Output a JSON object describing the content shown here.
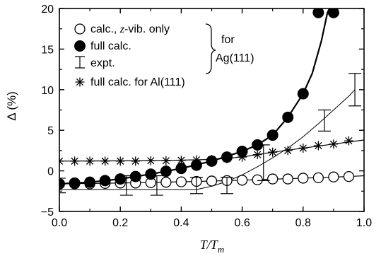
{
  "chart_data": {
    "type": "scatter",
    "xlabel": {
      "main": "T/T",
      "sub": "m"
    },
    "ylabel": "Δ (%)",
    "xlim": [
      0.0,
      1.0
    ],
    "ylim": [
      -5,
      20
    ],
    "x_ticks": [
      0.0,
      0.2,
      0.4,
      0.6,
      0.8,
      1.0
    ],
    "x_tick_labels": [
      "0.0",
      "0.2",
      "0.4",
      "0.6",
      "0.8",
      "1.0"
    ],
    "y_ticks": [
      -5,
      0,
      5,
      10,
      15,
      20
    ],
    "y_tick_labels": [
      "−5",
      "0",
      "5",
      "10",
      "15",
      "20"
    ],
    "grid": false,
    "legend": {
      "placement": "top-left",
      "entries": [
        {
          "pre": "calc., ",
          "math": "z",
          "post": "-vib. only"
        },
        {
          "pre": "full calc.",
          "math": "",
          "post": ""
        },
        {
          "pre": "expt.",
          "math": "",
          "post": ""
        },
        {
          "pre": "full calc. for Al(111)",
          "math": "",
          "post": ""
        }
      ],
      "brace_label_line1": "for",
      "brace_label_line2": "Ag(111)"
    },
    "series": [
      {
        "name": "calc., z-vib. only",
        "marker": "open-circle",
        "x": [
          0.0,
          0.05,
          0.1,
          0.15,
          0.2,
          0.25,
          0.3,
          0.35,
          0.4,
          0.45,
          0.5,
          0.55,
          0.6,
          0.65,
          0.7,
          0.75,
          0.8,
          0.85,
          0.9,
          0.95
        ],
        "y": [
          -1.6,
          -1.6,
          -1.6,
          -1.55,
          -1.5,
          -1.5,
          -1.45,
          -1.4,
          -1.35,
          -1.3,
          -1.25,
          -1.2,
          -1.15,
          -1.1,
          -1.0,
          -1.0,
          -0.9,
          -0.85,
          -0.75,
          -0.7
        ]
      },
      {
        "name": "full calc.",
        "marker": "filled-circle",
        "x": [
          0.0,
          0.05,
          0.1,
          0.15,
          0.2,
          0.25,
          0.3,
          0.35,
          0.4,
          0.45,
          0.5,
          0.55,
          0.6,
          0.65,
          0.7,
          0.75,
          0.8,
          0.85,
          0.9
        ],
        "y": [
          -1.6,
          -1.5,
          -1.4,
          -1.2,
          -1.0,
          -0.7,
          -0.4,
          -0.05,
          0.3,
          0.7,
          1.2,
          1.7,
          2.4,
          3.2,
          4.4,
          6.6,
          9.5,
          19.5,
          19.5
        ]
      },
      {
        "name": "full calc. for Al(111)",
        "marker": "asterisk",
        "x": [
          0.0,
          0.05,
          0.1,
          0.15,
          0.2,
          0.25,
          0.3,
          0.35,
          0.4,
          0.45,
          0.5,
          0.55,
          0.6,
          0.65,
          0.7,
          0.75,
          0.8,
          0.85,
          0.9,
          0.95
        ],
        "y": [
          1.2,
          1.2,
          1.2,
          1.2,
          1.2,
          1.2,
          1.25,
          1.25,
          1.3,
          1.35,
          1.4,
          1.5,
          1.7,
          2.0,
          2.3,
          2.5,
          2.8,
          3.1,
          3.3,
          3.7
        ]
      },
      {
        "name": "expt.",
        "marker": "error-bar",
        "x": [
          0.0,
          0.22,
          0.32,
          0.45,
          0.55,
          0.67,
          0.87,
          0.97
        ],
        "y": [
          -1.8,
          -1.8,
          -1.8,
          -1.8,
          -1.8,
          1.0,
          6.2,
          10.0
        ],
        "yerr": [
          0.9,
          1.2,
          1.2,
          1.0,
          1.0,
          2.2,
          1.3,
          2.0
        ]
      }
    ],
    "lines": [
      {
        "name": "expt-fit",
        "width": 1,
        "x": [
          0.0,
          0.45,
          0.5,
          0.55,
          0.6,
          0.65,
          0.7,
          0.75,
          0.8,
          0.85,
          0.9,
          0.95,
          0.97
        ],
        "y": [
          -2.3,
          -2.3,
          -1.9,
          -1.3,
          -0.5,
          0.5,
          1.6,
          2.8,
          4.2,
          5.8,
          7.5,
          9.2,
          10.0
        ]
      },
      {
        "name": "full-calc-fit",
        "width": 2.2,
        "x": [
          0.0,
          0.1,
          0.2,
          0.3,
          0.4,
          0.5,
          0.6,
          0.65,
          0.7,
          0.75,
          0.8,
          0.83,
          0.86,
          0.88,
          0.9
        ],
        "y": [
          -1.6,
          -1.4,
          -1.0,
          -0.4,
          0.3,
          1.2,
          2.4,
          3.2,
          4.4,
          6.6,
          9.5,
          12.0,
          16.0,
          19.5,
          21.0
        ]
      },
      {
        "name": "z-vib-fit",
        "width": 1.2,
        "x": [
          0.0,
          0.2,
          0.4,
          0.6,
          0.8,
          0.95,
          1.0
        ],
        "y": [
          -1.6,
          -1.5,
          -1.35,
          -1.15,
          -0.9,
          -0.7,
          -0.6
        ]
      },
      {
        "name": "al-fit",
        "width": 1.2,
        "x": [
          0.0,
          0.3,
          0.5,
          0.6,
          0.7,
          0.8,
          0.9,
          1.0
        ],
        "y": [
          1.2,
          1.25,
          1.4,
          1.7,
          2.3,
          2.8,
          3.3,
          3.8
        ]
      }
    ]
  }
}
